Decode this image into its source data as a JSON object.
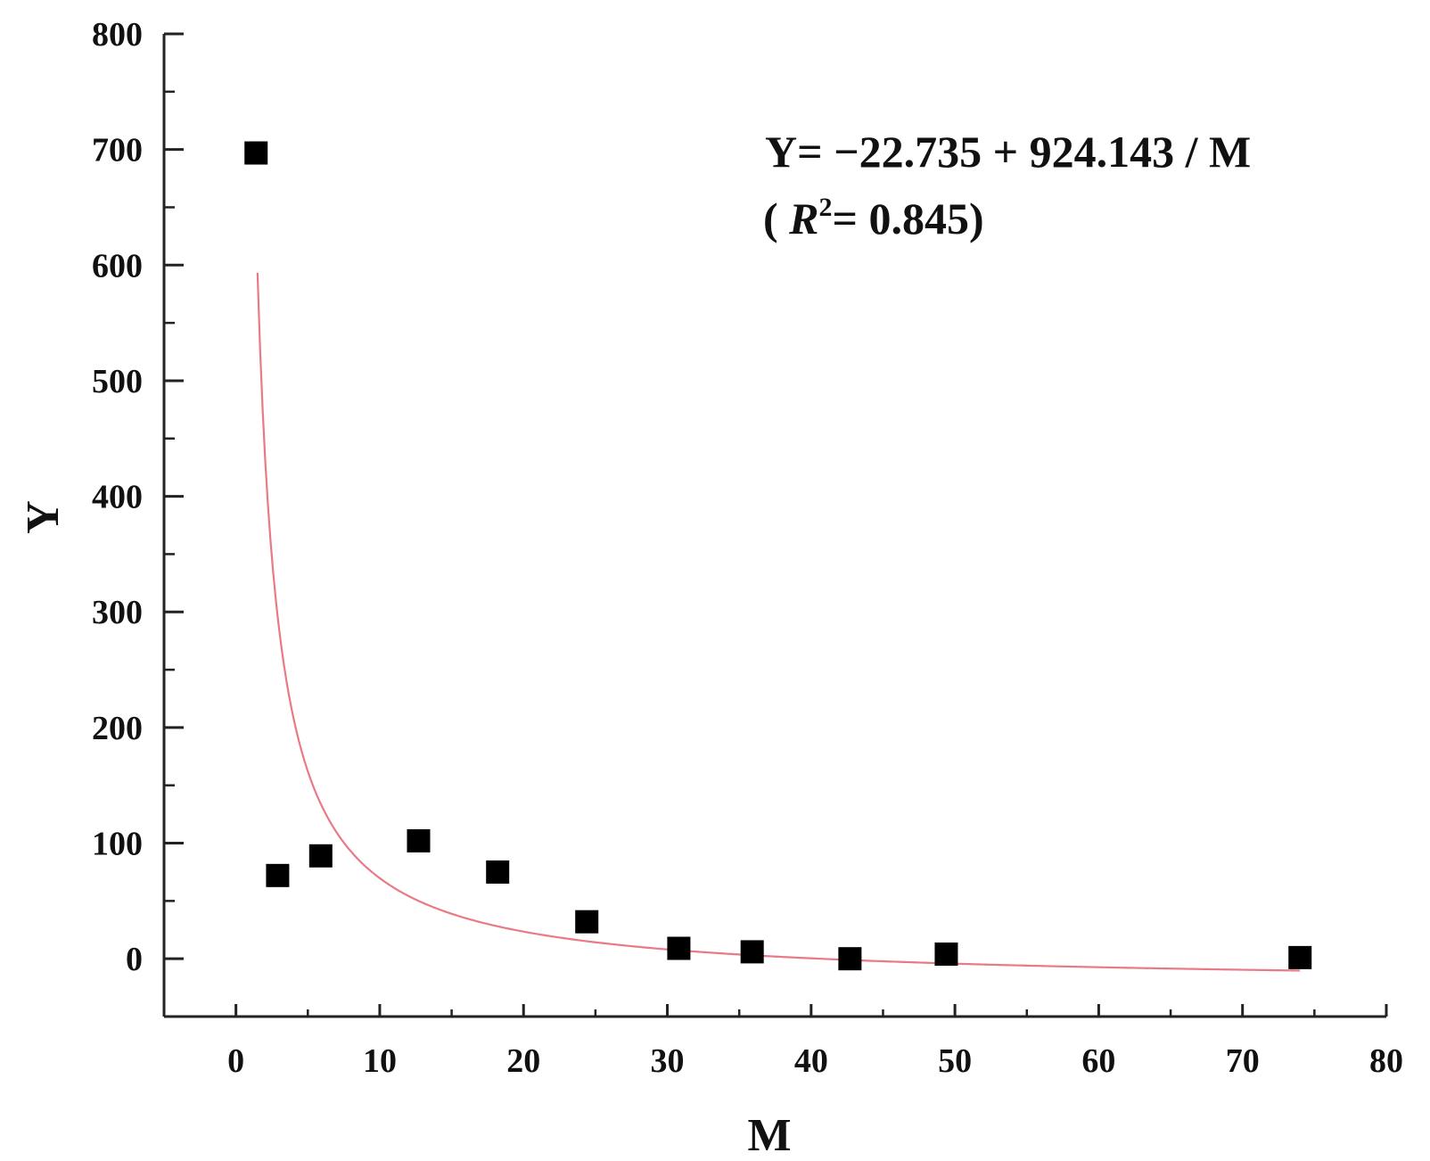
{
  "chart_data": {
    "type": "scatter",
    "title": "",
    "xlabel": "M",
    "ylabel": "Y",
    "xlim": [
      -5,
      80
    ],
    "ylim": [
      -50,
      800
    ],
    "xticks": [
      0,
      10,
      20,
      30,
      40,
      50,
      60,
      70,
      80
    ],
    "yticks": [
      0,
      100,
      200,
      300,
      400,
      500,
      600,
      700,
      800
    ],
    "xtick_labels": [
      "0",
      "10",
      "20",
      "30",
      "40",
      "50",
      "60",
      "70",
      "80"
    ],
    "ytick_labels": [
      "0",
      "100",
      "200",
      "300",
      "400",
      "500",
      "600",
      "700",
      "800"
    ],
    "grid": false,
    "series": [
      {
        "marker": "square",
        "color": "#000000",
        "x": [
          1.4,
          2.9,
          5.9,
          12.7,
          18.2,
          24.4,
          30.8,
          35.9,
          42.7,
          49.4,
          74.0
        ],
        "y": [
          697,
          72,
          89,
          102,
          75,
          32,
          9,
          6,
          0,
          4,
          1
        ]
      }
    ],
    "fit": {
      "color": "#e87a85",
      "intercept": -22.735,
      "coefficient": 924.143,
      "x_range": [
        1.5,
        74.0
      ]
    },
    "annotation": {
      "equation": "Y= −22.735 + 924.143 / M",
      "r2_open": "( ",
      "r2_symbol": "R",
      "r2_exponent": "2",
      "r2_value": "= 0.845)"
    }
  }
}
